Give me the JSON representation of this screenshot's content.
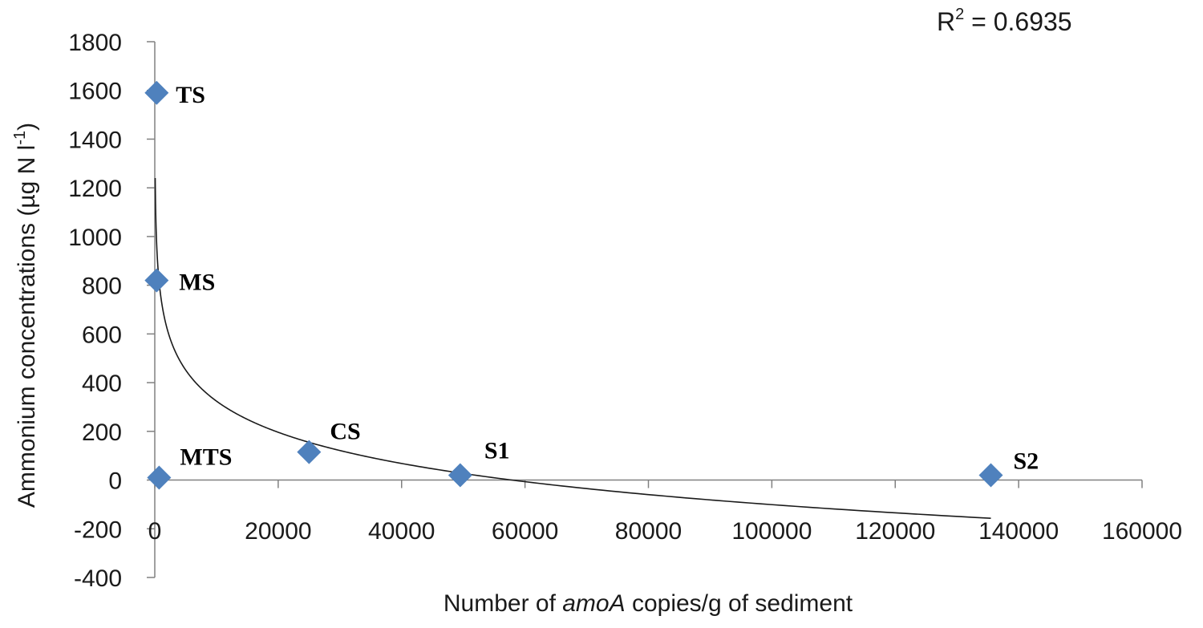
{
  "chart_data": {
    "type": "scatter",
    "title": "",
    "xlabel_parts": [
      "Number of ",
      "amoA",
      " copies/g of sediment"
    ],
    "ylabel_parts": [
      "Ammonium concentrations (µg N l",
      "-1",
      ")"
    ],
    "xlim": [
      0,
      160000
    ],
    "ylim": [
      -400,
      1800
    ],
    "xticks": [
      0,
      20000,
      40000,
      60000,
      80000,
      100000,
      120000,
      140000,
      160000
    ],
    "yticks": [
      -400,
      -200,
      0,
      200,
      400,
      600,
      800,
      1000,
      1200,
      1400,
      1600,
      1800
    ],
    "xtick_labels": [
      "0",
      "20000",
      "40000",
      "60000",
      "80000",
      "100000",
      "120000",
      "140000",
      "160000"
    ],
    "ytick_labels": [
      "-400",
      "-200",
      "0",
      "200",
      "400",
      "600",
      "800",
      "1000",
      "1200",
      "1400",
      "1600",
      "1800"
    ],
    "points": [
      {
        "label": "TS",
        "x": 300,
        "y": 1590
      },
      {
        "label": "MS",
        "x": 300,
        "y": 820
      },
      {
        "label": "MTS",
        "x": 700,
        "y": 10
      },
      {
        "label": "CS",
        "x": 25000,
        "y": 115
      },
      {
        "label": "S1",
        "x": 49500,
        "y": 20
      },
      {
        "label": "S2",
        "x": 135500,
        "y": 20
      }
    ],
    "trendline": {
      "type": "logarithmic",
      "x_range": [
        70,
        135500
      ],
      "y_at_start": 1240,
      "y_at_end": -157
    },
    "r2_parts": [
      "R",
      "2",
      " = 0.6935"
    ],
    "marker_color": "#4F81BD",
    "trendline_color": "#1a1a1a",
    "grid": false
  }
}
